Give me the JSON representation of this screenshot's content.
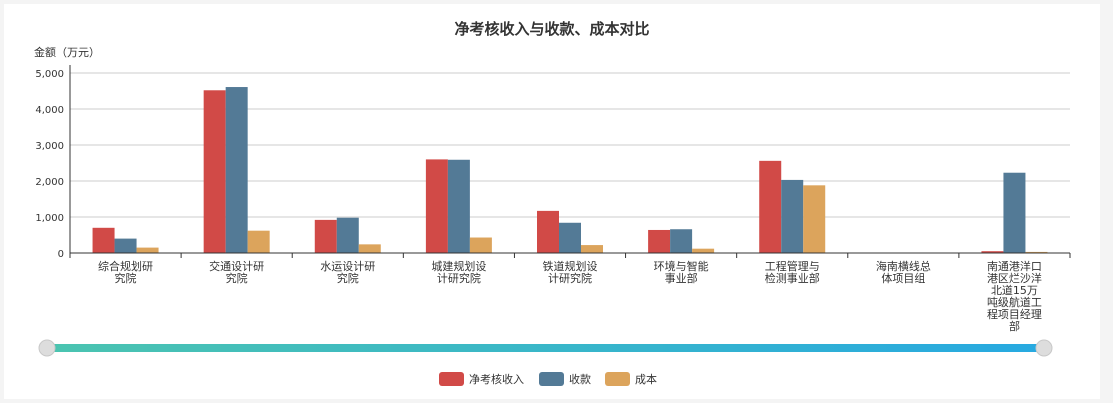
{
  "chart_data": {
    "type": "bar",
    "title": "净考核收入与收款、成本对比",
    "ylabel": "金额（万元）",
    "ylim": [
      0,
      5000
    ],
    "yticks": [
      "0",
      "1,000",
      "2,000",
      "3,000",
      "4,000",
      "5,000"
    ],
    "categories": [
      "综合规划研究院",
      "交通设计研究院",
      "水运设计研究院",
      "城建规划设计研究院",
      "铁道规划设计研究院",
      "环境与智能事业部",
      "工程管理与检测事业部",
      "海南横线总体项目组",
      "南通港洋口港区烂沙洋北道15万吨级航道工程项目经理部"
    ],
    "category_lines": [
      [
        "综合规划研",
        "究院"
      ],
      [
        "交通设计研",
        "究院"
      ],
      [
        "水运设计研",
        "究院"
      ],
      [
        "城建规划设",
        "计研究院"
      ],
      [
        "铁道规划设",
        "计研究院"
      ],
      [
        "环境与智能",
        "事业部"
      ],
      [
        "工程管理与",
        "检测事业部"
      ],
      [
        "海南横线总",
        "体项目组"
      ],
      [
        "南通港洋口",
        "港区烂沙洋",
        "北道15万",
        "吨级航道工",
        "程项目经理",
        "部"
      ]
    ],
    "series": [
      {
        "name": "净考核收入",
        "color": "#d14a47",
        "values": [
          700,
          4520,
          920,
          2600,
          1170,
          640,
          2560,
          0,
          50
        ]
      },
      {
        "name": "收款",
        "color": "#537a96",
        "values": [
          400,
          4610,
          980,
          2590,
          840,
          660,
          2030,
          0,
          2230
        ]
      },
      {
        "name": "成本",
        "color": "#dca45c",
        "values": [
          150,
          620,
          240,
          430,
          220,
          120,
          1880,
          0,
          30
        ]
      }
    ],
    "grid": true,
    "legend": "bottom-center",
    "slider_colors": [
      "#4bc4b0",
      "#27a9e1"
    ]
  }
}
